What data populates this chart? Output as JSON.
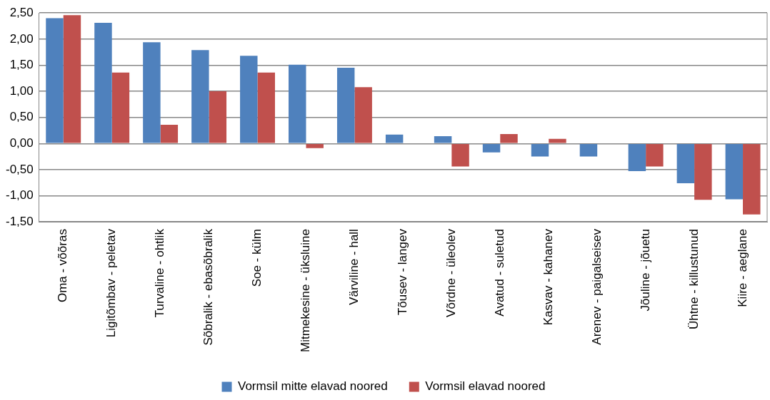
{
  "chart_data": {
    "type": "bar",
    "categories": [
      "Oma - võõras",
      "Ligitõmbav - peletav",
      "Turvaline - ohtlik",
      "Sõbralik - ebasõbralik",
      "Soe - külm",
      "Mitmekesine - üksluine",
      "Värviline - hall",
      "Tõusev - langev",
      "Võrdne - üleolev",
      "Avatud - suletud",
      "Kasvav - kahanev",
      "Arenev - paigalseisev",
      "Jõuline - jõuetu",
      "Ühtne - killustunud",
      "Kiire - aeglane"
    ],
    "series": [
      {
        "name": "Vormsil mitte elavad noored",
        "color": "#4f81bd",
        "values": [
          2.4,
          2.31,
          1.94,
          1.79,
          1.68,
          1.51,
          1.45,
          0.17,
          0.14,
          -0.17,
          -0.25,
          -0.25,
          -0.53,
          -0.76,
          -1.07
        ]
      },
      {
        "name": "Vormsil elavad noored",
        "color": "#c0504d",
        "values": [
          2.46,
          1.36,
          0.36,
          1.0,
          1.36,
          -0.09,
          1.08,
          null,
          -0.44,
          0.18,
          0.09,
          null,
          -0.44,
          -1.08,
          -1.36
        ]
      }
    ],
    "ylim": [
      -1.5,
      2.5
    ],
    "yticks": [
      {
        "value": -1.5,
        "label": "-1,50"
      },
      {
        "value": -1,
        "label": "-1,00"
      },
      {
        "value": -0.5,
        "label": "-0,50"
      },
      {
        "value": 0,
        "label": "0,00"
      },
      {
        "value": 0.5,
        "label": "0,50"
      },
      {
        "value": 1,
        "label": "1,00"
      },
      {
        "value": 1.5,
        "label": "1,50"
      },
      {
        "value": 2,
        "label": "2,00"
      },
      {
        "value": 2.5,
        "label": "2,50"
      }
    ],
    "grid": "y",
    "legend": "bottom"
  }
}
